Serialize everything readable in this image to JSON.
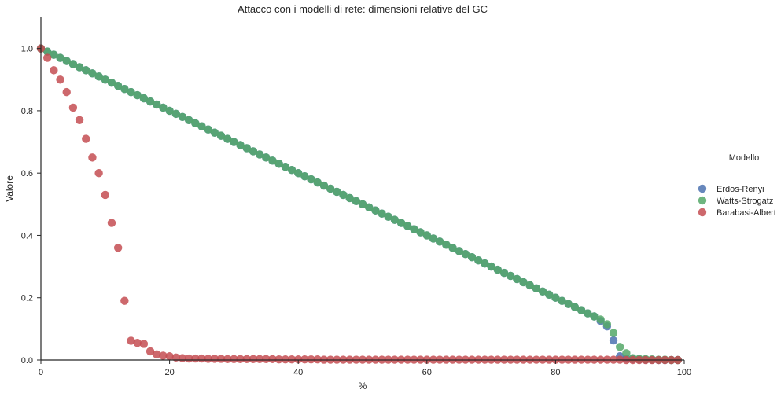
{
  "chart_data": {
    "type": "scatter",
    "title": "Attacco con i modelli di rete: dimensioni relative del GC",
    "xlabel": "%",
    "ylabel": "Valore",
    "xlim": [
      0,
      100
    ],
    "ylim": [
      0,
      1.1
    ],
    "xticks": [
      0,
      20,
      40,
      60,
      80,
      100
    ],
    "yticks": [
      0.0,
      0.2,
      0.4,
      0.6,
      0.8,
      1.0
    ],
    "xtick_labels": [
      "0",
      "20",
      "40",
      "60",
      "80",
      "100"
    ],
    "ytick_labels": [
      "0.0",
      "0.2",
      "0.4",
      "0.6",
      "0.8",
      "1.0"
    ],
    "grid": false,
    "legend": {
      "title": "Modello",
      "placement": "right"
    },
    "series": [
      {
        "name": "Erdos-Renyi",
        "color": "#4C72B0",
        "x": [
          0,
          1,
          2,
          3,
          4,
          5,
          6,
          7,
          8,
          9,
          10,
          11,
          12,
          13,
          14,
          15,
          16,
          17,
          18,
          19,
          20,
          21,
          22,
          23,
          24,
          25,
          26,
          27,
          28,
          29,
          30,
          31,
          32,
          33,
          34,
          35,
          36,
          37,
          38,
          39,
          40,
          41,
          42,
          43,
          44,
          45,
          46,
          47,
          48,
          49,
          50,
          51,
          52,
          53,
          54,
          55,
          56,
          57,
          58,
          59,
          60,
          61,
          62,
          63,
          64,
          65,
          66,
          67,
          68,
          69,
          70,
          71,
          72,
          73,
          74,
          75,
          76,
          77,
          78,
          79,
          80,
          81,
          82,
          83,
          84,
          85,
          86,
          87,
          88,
          89,
          90,
          91,
          92,
          93,
          94,
          95,
          96,
          97,
          98,
          99
        ],
        "y": [
          1.0,
          0.99,
          0.98,
          0.97,
          0.96,
          0.95,
          0.94,
          0.93,
          0.92,
          0.91,
          0.9,
          0.89,
          0.88,
          0.87,
          0.86,
          0.85,
          0.84,
          0.83,
          0.82,
          0.81,
          0.8,
          0.79,
          0.78,
          0.77,
          0.76,
          0.75,
          0.74,
          0.73,
          0.72,
          0.71,
          0.7,
          0.69,
          0.68,
          0.67,
          0.66,
          0.65,
          0.64,
          0.63,
          0.62,
          0.61,
          0.6,
          0.59,
          0.58,
          0.57,
          0.56,
          0.55,
          0.54,
          0.53,
          0.52,
          0.51,
          0.5,
          0.49,
          0.48,
          0.47,
          0.46,
          0.45,
          0.44,
          0.43,
          0.42,
          0.41,
          0.4,
          0.39,
          0.38,
          0.37,
          0.36,
          0.35,
          0.34,
          0.33,
          0.32,
          0.31,
          0.3,
          0.29,
          0.28,
          0.27,
          0.26,
          0.25,
          0.24,
          0.23,
          0.22,
          0.21,
          0.2,
          0.19,
          0.18,
          0.17,
          0.16,
          0.15,
          0.14,
          0.125,
          0.108,
          0.063,
          0.012,
          0.005,
          0.003,
          0.002,
          0.001,
          0.001,
          0.0,
          0.0,
          0.0,
          0.0
        ]
      },
      {
        "name": "Watts-Strogatz",
        "color": "#55A868",
        "x": [
          0,
          1,
          2,
          3,
          4,
          5,
          6,
          7,
          8,
          9,
          10,
          11,
          12,
          13,
          14,
          15,
          16,
          17,
          18,
          19,
          20,
          21,
          22,
          23,
          24,
          25,
          26,
          27,
          28,
          29,
          30,
          31,
          32,
          33,
          34,
          35,
          36,
          37,
          38,
          39,
          40,
          41,
          42,
          43,
          44,
          45,
          46,
          47,
          48,
          49,
          50,
          51,
          52,
          53,
          54,
          55,
          56,
          57,
          58,
          59,
          60,
          61,
          62,
          63,
          64,
          65,
          66,
          67,
          68,
          69,
          70,
          71,
          72,
          73,
          74,
          75,
          76,
          77,
          78,
          79,
          80,
          81,
          82,
          83,
          84,
          85,
          86,
          87,
          88,
          89,
          90,
          91,
          92,
          93,
          94,
          95,
          96,
          97,
          98,
          99
        ],
        "y": [
          1.0,
          0.99,
          0.98,
          0.97,
          0.96,
          0.95,
          0.94,
          0.93,
          0.92,
          0.91,
          0.9,
          0.89,
          0.88,
          0.87,
          0.86,
          0.85,
          0.84,
          0.83,
          0.82,
          0.81,
          0.8,
          0.79,
          0.78,
          0.77,
          0.76,
          0.75,
          0.74,
          0.73,
          0.72,
          0.71,
          0.7,
          0.69,
          0.68,
          0.67,
          0.66,
          0.65,
          0.64,
          0.63,
          0.62,
          0.61,
          0.6,
          0.59,
          0.58,
          0.57,
          0.56,
          0.55,
          0.54,
          0.53,
          0.52,
          0.51,
          0.5,
          0.49,
          0.48,
          0.47,
          0.46,
          0.45,
          0.44,
          0.43,
          0.42,
          0.41,
          0.4,
          0.39,
          0.38,
          0.37,
          0.36,
          0.35,
          0.34,
          0.33,
          0.32,
          0.31,
          0.3,
          0.29,
          0.28,
          0.27,
          0.26,
          0.25,
          0.24,
          0.23,
          0.22,
          0.21,
          0.2,
          0.19,
          0.18,
          0.17,
          0.16,
          0.15,
          0.14,
          0.13,
          0.115,
          0.087,
          0.042,
          0.022,
          0.006,
          0.004,
          0.003,
          0.002,
          0.001,
          0.001,
          0.0,
          0.0
        ]
      },
      {
        "name": "Barabasi-Albert",
        "color": "#C44E52",
        "x": [
          0,
          1,
          2,
          3,
          4,
          5,
          6,
          7,
          8,
          9,
          10,
          11,
          12,
          13,
          14,
          15,
          16,
          17,
          18,
          19,
          20,
          21,
          22,
          23,
          24,
          25,
          26,
          27,
          28,
          29,
          30,
          31,
          32,
          33,
          34,
          35,
          36,
          37,
          38,
          39,
          40,
          41,
          42,
          43,
          44,
          45,
          46,
          47,
          48,
          49,
          50,
          51,
          52,
          53,
          54,
          55,
          56,
          57,
          58,
          59,
          60,
          61,
          62,
          63,
          64,
          65,
          66,
          67,
          68,
          69,
          70,
          71,
          72,
          73,
          74,
          75,
          76,
          77,
          78,
          79,
          80,
          81,
          82,
          83,
          84,
          85,
          86,
          87,
          88,
          89,
          90,
          91,
          92,
          93,
          94,
          95,
          96,
          97,
          98,
          99
        ],
        "y": [
          1.0,
          0.97,
          0.93,
          0.9,
          0.86,
          0.81,
          0.77,
          0.71,
          0.65,
          0.6,
          0.53,
          0.44,
          0.36,
          0.19,
          0.062,
          0.055,
          0.052,
          0.028,
          0.018,
          0.014,
          0.012,
          0.008,
          0.006,
          0.005,
          0.005,
          0.005,
          0.004,
          0.004,
          0.004,
          0.003,
          0.003,
          0.003,
          0.003,
          0.003,
          0.003,
          0.003,
          0.003,
          0.002,
          0.002,
          0.002,
          0.002,
          0.002,
          0.002,
          0.002,
          0.001,
          0.001,
          0.001,
          0.001,
          0.001,
          0.001,
          0.001,
          0.001,
          0.001,
          0.001,
          0.001,
          0.001,
          0.001,
          0.001,
          0.001,
          0.001,
          0.001,
          0.001,
          0.001,
          0.001,
          0.001,
          0.001,
          0.001,
          0.001,
          0.001,
          0.001,
          0.001,
          0.001,
          0.001,
          0.001,
          0.001,
          0.001,
          0.001,
          0.001,
          0.001,
          0.001,
          0.001,
          0.001,
          0.001,
          0.001,
          0.001,
          0.001,
          0.001,
          0.001,
          0.001,
          0.001,
          0.001,
          0.0,
          0.0,
          0.0,
          0.0,
          0.0,
          0.0,
          0.0,
          0.0,
          0.0
        ]
      }
    ]
  }
}
